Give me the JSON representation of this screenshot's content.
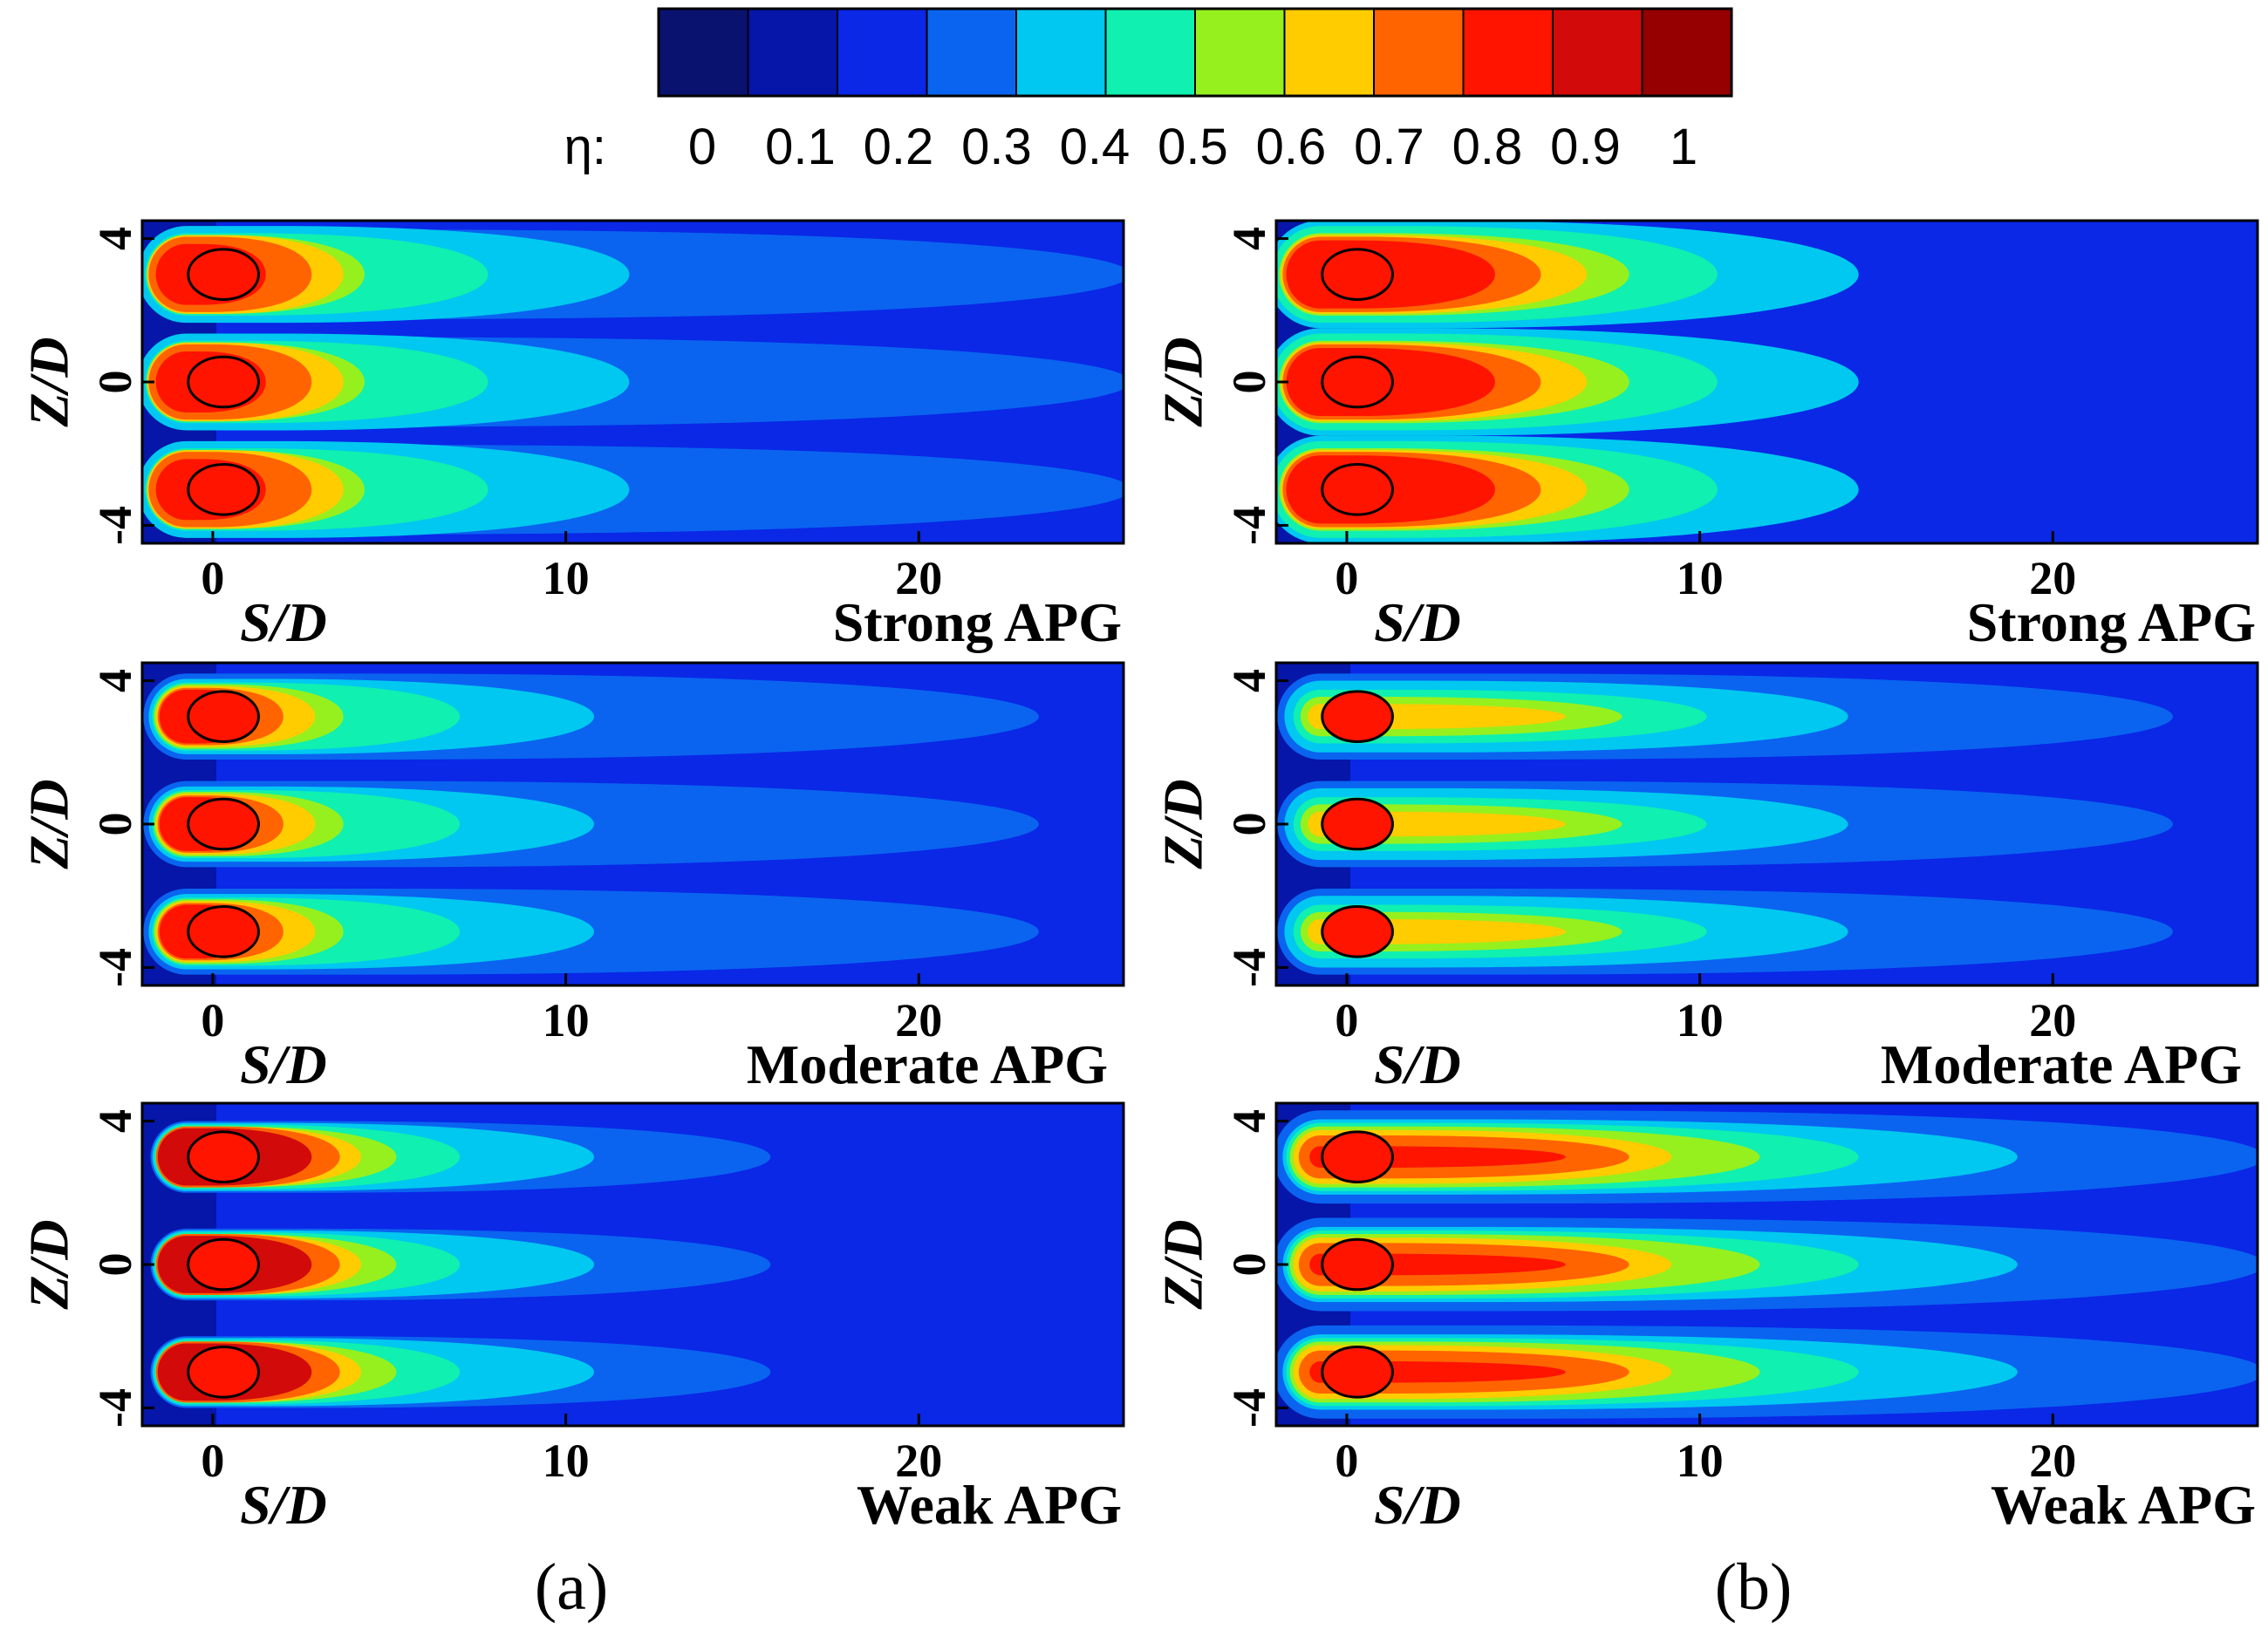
{
  "chart_data": {
    "type": "heatmap",
    "colorbar": {
      "symbol": "η:",
      "tick_labels": [
        "0",
        "0.1",
        "0.2",
        "0.3",
        "0.4",
        "0.5",
        "0.6",
        "0.7",
        "0.8",
        "0.9",
        "1"
      ],
      "colors": [
        "#0a1270",
        "#0516a8",
        "#0a28e6",
        "#0a64f0",
        "#00c8f0",
        "#10f0b0",
        "#96f01e",
        "#ffcc00",
        "#ff6400",
        "#ff1400",
        "#d20a0a",
        "#960000"
      ]
    },
    "x_axis": {
      "label": "S/D",
      "range": [
        -2,
        25.8
      ],
      "tick_values": [
        0,
        10,
        20
      ],
      "tick_labels": [
        "0",
        "10",
        "20"
      ]
    },
    "y_axis": {
      "label": "Z/D",
      "range": [
        -4.5,
        4.5
      ],
      "tick_values": [
        4,
        0,
        -4
      ],
      "tick_labels": [
        "4",
        "0",
        "-4"
      ]
    },
    "hole_rows_zd": [
      3,
      0,
      -3
    ],
    "columns": [
      {
        "caption": "(a)",
        "panels": [
          {
            "label": "Strong APG",
            "levels": [
              {
                "c": 3,
                "ext": 26,
                "hw": 1.25
              },
              {
                "c": 4,
                "ext": 11.8,
                "hw": 1.35
              },
              {
                "c": 5,
                "ext": 7.8,
                "hw": 1.15
              },
              {
                "c": 6,
                "ext": 4.3,
                "hw": 1.1
              },
              {
                "c": 7,
                "ext": 3.7,
                "hw": 1.1
              },
              {
                "c": 8,
                "ext": 2.8,
                "hw": 1.05
              },
              {
                "c": 9,
                "ext": 1.5,
                "hw": 0.85
              }
            ]
          },
          {
            "label": "Moderate APG",
            "levels": [
              {
                "c": 3,
                "ext": 23.4,
                "hw": 1.2
              },
              {
                "c": 4,
                "ext": 10.8,
                "hw": 1.05
              },
              {
                "c": 5,
                "ext": 7,
                "hw": 0.95
              },
              {
                "c": 6,
                "ext": 3.7,
                "hw": 0.9
              },
              {
                "c": 7,
                "ext": 2.9,
                "hw": 0.85
              },
              {
                "c": 8,
                "ext": 2,
                "hw": 0.8
              },
              {
                "c": 9,
                "ext": 1.2,
                "hw": 0.75
              }
            ]
          },
          {
            "label": "Weak APG",
            "levels": [
              {
                "c": 3,
                "ext": 15.8,
                "hw": 1.0
              },
              {
                "c": 4,
                "ext": 10.8,
                "hw": 0.95
              },
              {
                "c": 5,
                "ext": 7,
                "hw": 0.9
              },
              {
                "c": 6,
                "ext": 5.2,
                "hw": 0.85
              },
              {
                "c": 7,
                "ext": 4.2,
                "hw": 0.85
              },
              {
                "c": 8,
                "ext": 3.6,
                "hw": 0.85
              },
              {
                "c": 10,
                "ext": 2.8,
                "hw": 0.8
              }
            ]
          }
        ]
      },
      {
        "caption": "(b)",
        "panels": [
          {
            "label": "Strong APG",
            "levels": [
              {
                "c": 4,
                "ext": 14.5,
                "hw": 1.5
              },
              {
                "c": 5,
                "ext": 10.5,
                "hw": 1.35
              },
              {
                "c": 6,
                "ext": 8,
                "hw": 1.15
              },
              {
                "c": 7,
                "ext": 6.8,
                "hw": 1.1
              },
              {
                "c": 8,
                "ext": 5.5,
                "hw": 1.05
              },
              {
                "c": 9,
                "ext": 4.2,
                "hw": 0.95
              }
            ]
          },
          {
            "label": "Moderate APG",
            "levels": [
              {
                "c": 3,
                "ext": 23.4,
                "hw": 1.2
              },
              {
                "c": 4,
                "ext": 14.2,
                "hw": 1.0
              },
              {
                "c": 5,
                "ext": 10.2,
                "hw": 0.75
              },
              {
                "c": 6,
                "ext": 7.8,
                "hw": 0.55
              },
              {
                "c": 7,
                "ext": 6.2,
                "hw": 0.35
              }
            ]
          },
          {
            "label": "Weak APG",
            "levels": [
              {
                "c": 3,
                "ext": 26,
                "hw": 1.3
              },
              {
                "c": 4,
                "ext": 19,
                "hw": 1.05
              },
              {
                "c": 5,
                "ext": 14.5,
                "hw": 0.95
              },
              {
                "c": 6,
                "ext": 11.7,
                "hw": 0.85
              },
              {
                "c": 7,
                "ext": 9.2,
                "hw": 0.75
              },
              {
                "c": 8,
                "ext": 8,
                "hw": 0.6
              },
              {
                "c": 9,
                "ext": 6.2,
                "hw": 0.3
              }
            ]
          }
        ]
      }
    ]
  }
}
